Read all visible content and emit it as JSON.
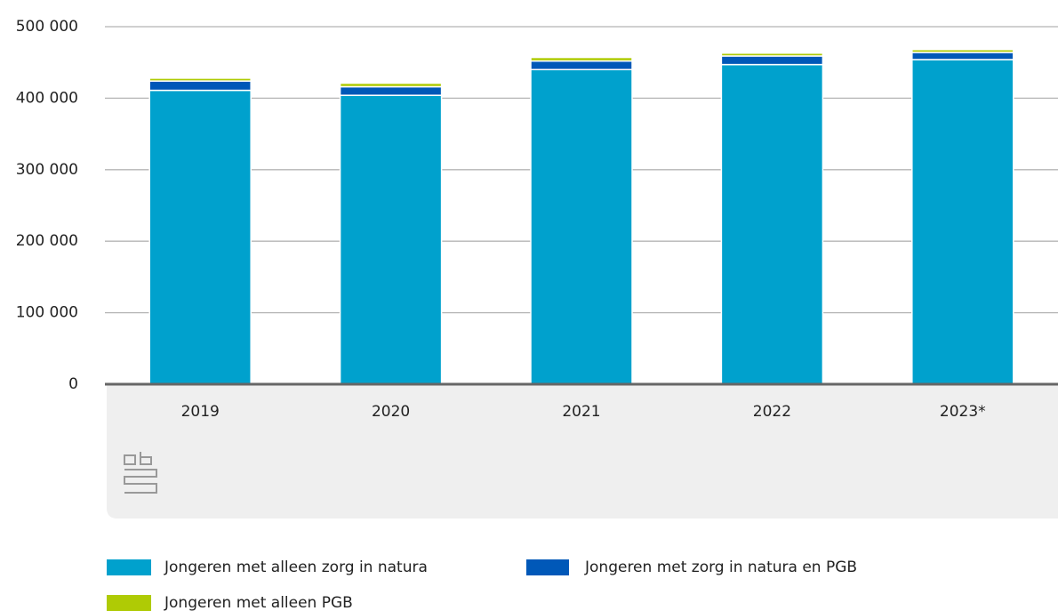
{
  "chart_data": {
    "type": "stacked_bar",
    "categories": [
      "2019",
      "2020",
      "2021",
      "2022",
      "2023*"
    ],
    "series": [
      {
        "name": "Jongeren met alleen zorg in natura",
        "color": "#00a1cd",
        "values": [
          411000,
          404000,
          440000,
          447000,
          454000
        ]
      },
      {
        "name": "Jongeren met zorg in natura en PGB",
        "color": "#0058b8",
        "values": [
          13000,
          12000,
          12000,
          12000,
          10000
        ]
      },
      {
        "name": "Jongeren met alleen PGB",
        "color": "#afcb05",
        "values": [
          4000,
          5000,
          5000,
          4000,
          4000
        ]
      }
    ],
    "ylim": [
      0,
      500000
    ],
    "yticks": [
      0,
      {
        "value": 100000,
        "label": "100 000"
      },
      {
        "value": 200000,
        "label": "200 000"
      },
      {
        "value": 300000,
        "label": "300 000"
      },
      {
        "value": 400000,
        "label": "400 000"
      },
      {
        "value": 500000,
        "label": "500 000"
      }
    ],
    "grid": true
  }
}
